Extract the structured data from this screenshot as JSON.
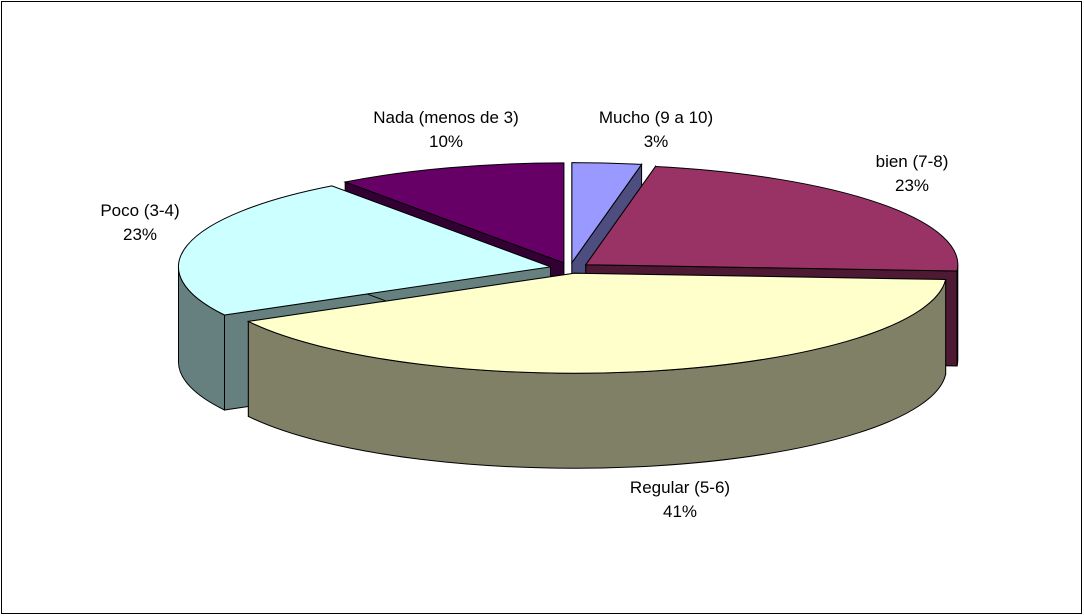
{
  "chart_data": {
    "type": "pie",
    "categories": [
      "Mucho (9 a 10)",
      "bien (7-8)",
      "Regular (5-6)",
      "Poco (3-4)",
      "Nada (menos de 3)"
    ],
    "values": [
      3,
      23,
      41,
      23,
      10
    ],
    "value_labels": [
      "3%",
      "23%",
      "41%",
      "23%",
      "10%"
    ],
    "colors": [
      "#9999ff",
      "#993366",
      "#ffffcc",
      "#ccffff",
      "#660066"
    ],
    "side_colors": [
      "#4d4d80",
      "#4d1933",
      "#808066",
      "#668080",
      "#330033"
    ]
  }
}
